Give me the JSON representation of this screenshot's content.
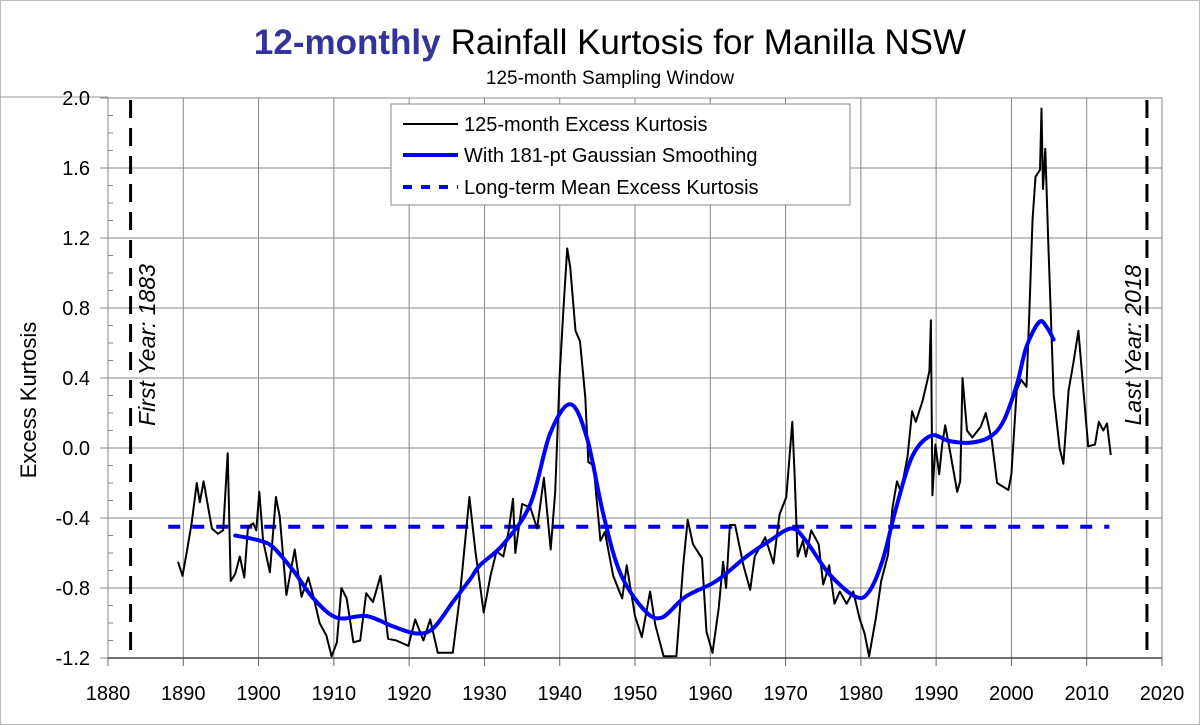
{
  "chart_data": {
    "type": "line",
    "title_highlight": "12-monthly",
    "title_rest": "Rainfall Kurtosis for Manilla NSW",
    "subtitle": "125-month Sampling Window",
    "xlabel": "",
    "ylabel": "Excess Kurtosis",
    "xlim": [
      1880,
      2020
    ],
    "ylim": [
      -1.2,
      2.0
    ],
    "x_ticks": [
      "1880",
      "1890",
      "1900",
      "1910",
      "1920",
      "1930",
      "1940",
      "1950",
      "1960",
      "1970",
      "1980",
      "1990",
      "2000",
      "2010",
      "2020"
    ],
    "y_ticks": [
      "-1.2",
      "-0.8",
      "-0.4",
      "0.0",
      "0.4",
      "0.8",
      "1.2",
      "1.6",
      "2.0"
    ],
    "grid": true,
    "legend_placement": "top-center",
    "colors": {
      "title_highlight": "#333399",
      "raw": "#000000",
      "smoothed": "#0000ff",
      "mean": "#0000ff"
    },
    "series": [
      {
        "name": "125-month Excess Kurtosis",
        "style": "solid-thin",
        "x": [
          1889.3,
          1889.9,
          1890.4,
          1891.1,
          1891.8,
          1892.2,
          1892.7,
          1893.8,
          1894.6,
          1895.3,
          1895.9,
          1896.3,
          1896.9,
          1897.5,
          1898.1,
          1898.6,
          1899.3,
          1899.7,
          1900.1,
          1900.6,
          1901.5,
          1902.3,
          1902.8,
          1903.7,
          1904.8,
          1905.7,
          1906.6,
          1907.3,
          1908.1,
          1909.0,
          1909.7,
          1910.4,
          1911.0,
          1911.7,
          1912.6,
          1913.5,
          1914.3,
          1915.2,
          1916.2,
          1917.2,
          1918.3,
          1919.9,
          1920.8,
          1921.9,
          1922.8,
          1923.8,
          1925.8,
          1926.7,
          1928.0,
          1928.8,
          1929.9,
          1930.8,
          1931.6,
          1932.5,
          1933.2,
          1933.8,
          1934.1,
          1935.0,
          1936.1,
          1937.0,
          1937.9,
          1938.8,
          1939.4,
          1940.0,
          1940.5,
          1941.0,
          1941.4,
          1942.1,
          1942.7,
          1943.4,
          1943.8,
          1944.5,
          1945.4,
          1946.0,
          1947.1,
          1948.3,
          1948.9,
          1950.0,
          1950.9,
          1952.0,
          1952.7,
          1953.8,
          1955.5,
          1956.4,
          1957.0,
          1957.7,
          1958.9,
          1959.5,
          1960.3,
          1961.1,
          1961.7,
          1962.1,
          1962.6,
          1963.3,
          1964.4,
          1965.3,
          1965.9,
          1967.3,
          1968.4,
          1969.2,
          1970.1,
          1970.9,
          1971.2,
          1971.6,
          1972.3,
          1972.7,
          1973.4,
          1974.4,
          1975.0,
          1975.8,
          1976.5,
          1977.2,
          1978.1,
          1979.0,
          1979.8,
          1980.5,
          1981.1,
          1982.0,
          1982.7,
          1983.6,
          1984.2,
          1984.8,
          1985.3,
          1986.2,
          1986.8,
          1987.3,
          1988.2,
          1988.8,
          1989.1,
          1989.3,
          1989.5,
          1989.9,
          1990.4,
          1990.8,
          1991.2,
          1991.9,
          1992.8,
          1993.2,
          1993.5,
          1994.1,
          1994.8,
          1995.9,
          1996.6,
          1997.4,
          1998.1,
          1999.6,
          2000.0,
          2000.7,
          2001.3,
          2002.0,
          2002.4,
          2002.8,
          2003.2,
          2003.8,
          2004.0,
          2004.2,
          2004.5,
          2004.9,
          2005.2,
          2005.6,
          2006.4,
          2006.9,
          2007.6,
          2008.2,
          2008.9,
          2009.6,
          2010.2,
          2011.1,
          2011.6,
          2012.2,
          2012.7,
          2013.2
        ],
        "y": [
          -0.65,
          -0.73,
          -0.61,
          -0.43,
          -0.2,
          -0.31,
          -0.19,
          -0.46,
          -0.49,
          -0.47,
          -0.03,
          -0.76,
          -0.72,
          -0.62,
          -0.74,
          -0.45,
          -0.43,
          -0.47,
          -0.25,
          -0.53,
          -0.71,
          -0.28,
          -0.39,
          -0.84,
          -0.58,
          -0.85,
          -0.74,
          -0.85,
          -1.0,
          -1.07,
          -1.19,
          -1.11,
          -0.8,
          -0.86,
          -1.11,
          -1.1,
          -0.83,
          -0.88,
          -0.73,
          -1.09,
          -1.1,
          -1.13,
          -0.98,
          -1.1,
          -0.98,
          -1.17,
          -1.17,
          -0.86,
          -0.28,
          -0.59,
          -0.94,
          -0.73,
          -0.59,
          -0.62,
          -0.48,
          -0.29,
          -0.6,
          -0.32,
          -0.34,
          -0.46,
          -0.17,
          -0.58,
          -0.25,
          0.42,
          0.8,
          1.14,
          1.03,
          0.67,
          0.61,
          0.29,
          -0.08,
          -0.1,
          -0.53,
          -0.48,
          -0.73,
          -0.86,
          -0.67,
          -0.96,
          -1.08,
          -0.82,
          -1.01,
          -1.19,
          -1.19,
          -0.67,
          -0.41,
          -0.55,
          -0.63,
          -1.05,
          -1.17,
          -0.92,
          -0.65,
          -0.8,
          -0.44,
          -0.44,
          -0.67,
          -0.81,
          -0.62,
          -0.51,
          -0.66,
          -0.38,
          -0.28,
          0.15,
          -0.15,
          -0.62,
          -0.53,
          -0.62,
          -0.47,
          -0.55,
          -0.78,
          -0.67,
          -0.89,
          -0.82,
          -0.89,
          -0.82,
          -0.97,
          -1.06,
          -1.19,
          -0.97,
          -0.76,
          -0.61,
          -0.34,
          -0.19,
          -0.25,
          -0.05,
          0.21,
          0.15,
          0.27,
          0.38,
          0.44,
          0.73,
          -0.27,
          0.02,
          -0.15,
          0.02,
          0.13,
          -0.03,
          -0.25,
          -0.19,
          0.4,
          0.1,
          0.06,
          0.12,
          0.2,
          0.04,
          -0.2,
          -0.24,
          -0.15,
          0.33,
          0.39,
          0.35,
          0.8,
          1.3,
          1.55,
          1.59,
          1.94,
          1.48,
          1.71,
          1.17,
          0.8,
          0.31,
          0.0,
          -0.09,
          0.33,
          0.48,
          0.67,
          0.31,
          0.01,
          0.02,
          0.15,
          0.1,
          0.14,
          -0.04
        ]
      },
      {
        "name": "With 181-pt Gaussian Smoothing",
        "style": "solid-thick",
        "x": [
          1896.9,
          1900.2,
          1902.0,
          1904.6,
          1907.3,
          1910.4,
          1914.3,
          1917.9,
          1921.0,
          1923.2,
          1925.8,
          1928.1,
          1929.4,
          1932.5,
          1936.1,
          1938.7,
          1941.4,
          1943.6,
          1945.8,
          1948.0,
          1951.1,
          1953.5,
          1956.7,
          1960.8,
          1964.8,
          1967.9,
          1970.8,
          1972.7,
          1975.8,
          1979.3,
          1981.1,
          1982.9,
          1984.7,
          1986.8,
          1989.3,
          1991.7,
          1994.4,
          1997.0,
          1998.9,
          2000.7,
          2002.0,
          2003.7,
          2004.7,
          2005.6
        ],
        "y": [
          -0.5,
          -0.53,
          -0.57,
          -0.7,
          -0.86,
          -0.97,
          -0.96,
          -1.02,
          -1.06,
          -1.03,
          -0.88,
          -0.75,
          -0.67,
          -0.55,
          -0.32,
          0.08,
          0.25,
          0.06,
          -0.38,
          -0.71,
          -0.92,
          -0.97,
          -0.85,
          -0.76,
          -0.62,
          -0.53,
          -0.46,
          -0.53,
          -0.72,
          -0.85,
          -0.82,
          -0.64,
          -0.34,
          -0.05,
          0.07,
          0.04,
          0.03,
          0.06,
          0.15,
          0.36,
          0.58,
          0.72,
          0.69,
          0.62
        ]
      },
      {
        "name": "Long-term Mean Excess Kurtosis",
        "style": "dashed",
        "x": [
          1888,
          2013
        ],
        "y": [
          -0.45,
          -0.45
        ]
      }
    ],
    "annotations": [
      {
        "text": "First Year: 1883",
        "x": 1883
      },
      {
        "text": "Last Year: 2018",
        "x": 2018
      }
    ]
  }
}
